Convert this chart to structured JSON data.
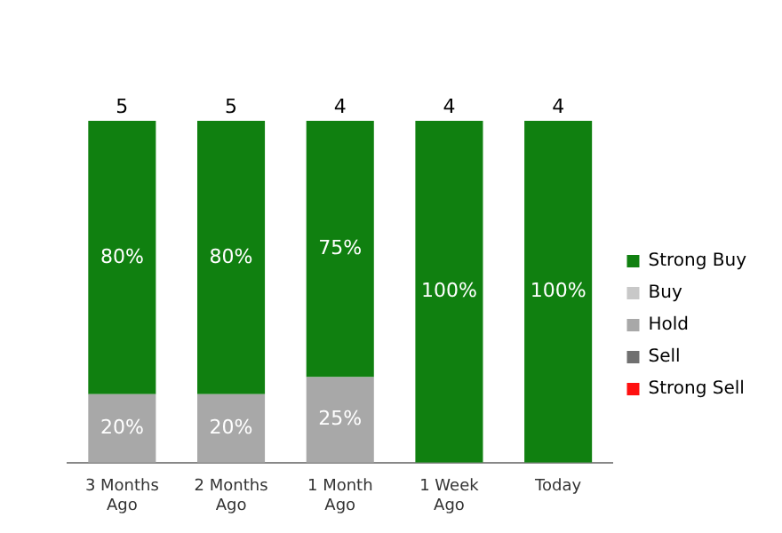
{
  "chart_data": {
    "type": "bar",
    "stacked": true,
    "categories": [
      "3 Months Ago",
      "2 Months Ago",
      "1 Month Ago",
      "1 Week Ago",
      "Today"
    ],
    "series": [
      {
        "name": "Strong Sell",
        "color": "#ff1010",
        "values": [
          0,
          0,
          0,
          0,
          0
        ],
        "value_labels": [
          null,
          null,
          null,
          null,
          null
        ]
      },
      {
        "name": "Sell",
        "color": "#707070",
        "values": [
          0,
          0,
          0,
          0,
          0
        ],
        "value_labels": [
          null,
          null,
          null,
          null,
          null
        ]
      },
      {
        "name": "Hold",
        "color": "#a8a8a8",
        "values": [
          20,
          20,
          25,
          0,
          0
        ],
        "value_labels": [
          "20%",
          "20%",
          "25%",
          null,
          null
        ]
      },
      {
        "name": "Buy",
        "color": "#c8c8c8",
        "values": [
          0,
          0,
          0,
          0,
          0
        ],
        "value_labels": [
          null,
          null,
          null,
          null,
          null
        ]
      },
      {
        "name": "Strong Buy",
        "color": "#108010",
        "values": [
          80,
          80,
          75,
          100,
          100
        ],
        "value_labels": [
          "80%",
          "80%",
          "75%",
          "100%",
          "100%"
        ]
      }
    ],
    "annotations": [
      {
        "text": "5",
        "x": "3 Months Ago",
        "y": 100
      },
      {
        "text": "5",
        "x": "2 Months Ago",
        "y": 100
      },
      {
        "text": "4",
        "x": "1 Month Ago",
        "y": 100
      },
      {
        "text": "4",
        "x": "1 Week Ago",
        "y": 100
      },
      {
        "text": "4",
        "x": "Today",
        "y": 100
      }
    ],
    "legend": "right",
    "grid": false,
    "marker": "square"
  }
}
